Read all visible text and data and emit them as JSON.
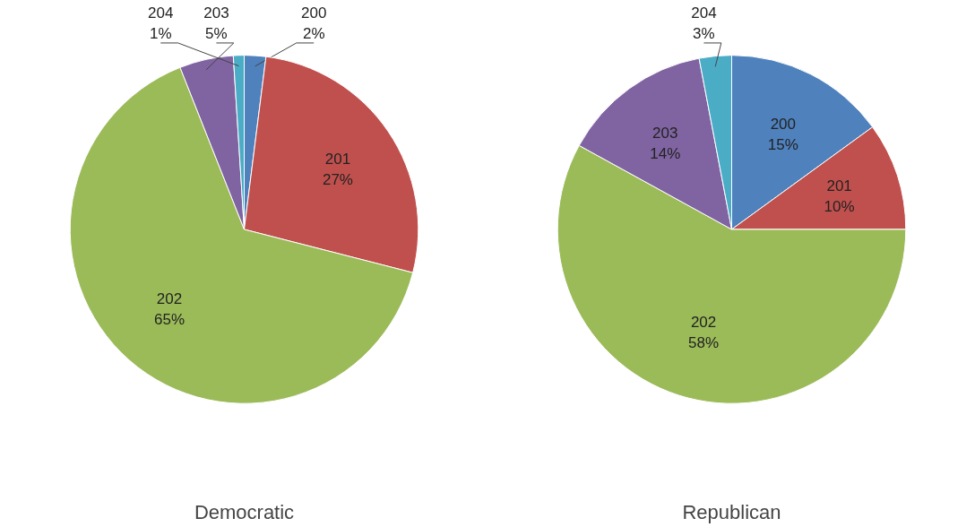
{
  "chart_data": [
    {
      "type": "pie",
      "title": "Democratic",
      "categories": [
        "200",
        "201",
        "202",
        "203",
        "204"
      ],
      "values": [
        2,
        27,
        65,
        5,
        1
      ],
      "value_labels": [
        "2%",
        "27%",
        "65%",
        "5%",
        "1%"
      ],
      "colors": [
        "#4f81bd",
        "#c0504d",
        "#9bbb59",
        "#8064a2",
        "#4bacc6"
      ]
    },
    {
      "type": "pie",
      "title": "Republican",
      "categories": [
        "200",
        "201",
        "202",
        "203",
        "204"
      ],
      "values": [
        15,
        10,
        58,
        14,
        3
      ],
      "value_labels": [
        "15%",
        "10%",
        "58%",
        "14%",
        "3%"
      ],
      "colors": [
        "#4f81bd",
        "#c0504d",
        "#9bbb59",
        "#8064a2",
        "#4bacc6"
      ]
    }
  ]
}
